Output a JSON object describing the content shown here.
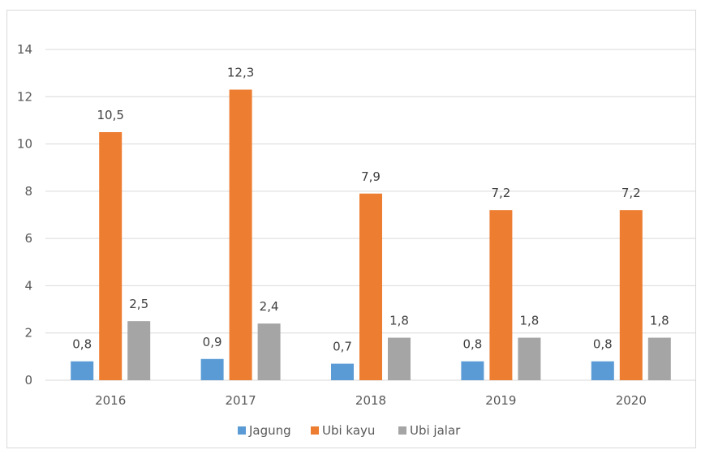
{
  "chart_data": {
    "type": "bar",
    "categories": [
      "2016",
      "2017",
      "2018",
      "2019",
      "2020"
    ],
    "series": [
      {
        "name": "Jagung",
        "values": [
          0.8,
          0.9,
          0.7,
          0.8,
          0.8
        ],
        "labels": [
          "0,8",
          "0,9",
          "0,7",
          "0,8",
          "0,8"
        ],
        "color": "#5b9bd5"
      },
      {
        "name": "Ubi kayu",
        "values": [
          10.5,
          12.3,
          7.9,
          7.2,
          7.2
        ],
        "labels": [
          "10,5",
          "12,3",
          "7,9",
          "7,2",
          "7,2"
        ],
        "color": "#ed7d31"
      },
      {
        "name": "Ubi jalar",
        "values": [
          2.5,
          2.4,
          1.8,
          1.8,
          1.8
        ],
        "labels": [
          "2,5",
          "2,4",
          "1,8",
          "1,8",
          "1,8"
        ],
        "color": "#a5a5a5"
      }
    ],
    "y_ticks": [
      "0",
      "2",
      "4",
      "6",
      "8",
      "10",
      "12",
      "14"
    ],
    "ylim": [
      0,
      14
    ],
    "title": "",
    "xlabel": "",
    "ylabel": "",
    "grid": true,
    "gridline_color": "#d9d9d9",
    "legend_position": "bottom"
  }
}
